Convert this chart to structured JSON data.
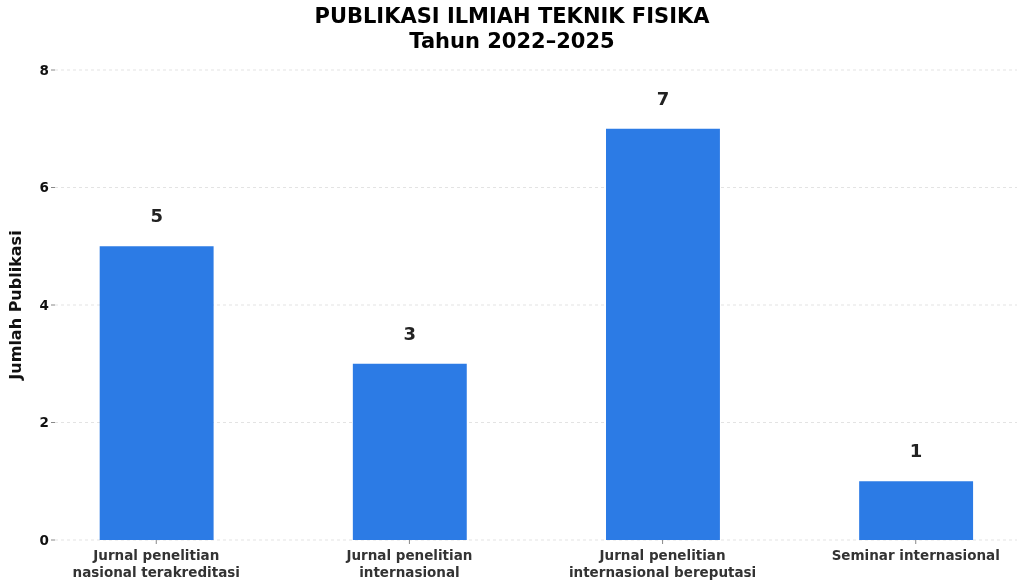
{
  "chart_data": {
    "type": "bar",
    "title": "PUBLIKASI ILMIAH TEKNIK FISIKA\nTahun 2022–2025",
    "ylabel": "Jumlah Publikasi",
    "categories": [
      "Jurnal penelitian\nnasional terakreditasi",
      "Jurnal penelitian\ninternasional",
      "Jurnal penelitian\ninternasional bereputasi",
      "Seminar internasional"
    ],
    "values": [
      5,
      3,
      7,
      1
    ],
    "color": "#2c7be5",
    "ylim": [
      0,
      8
    ],
    "yticks": [
      0,
      2,
      4,
      6,
      8
    ],
    "grid": "y",
    "data_labels": true
  }
}
